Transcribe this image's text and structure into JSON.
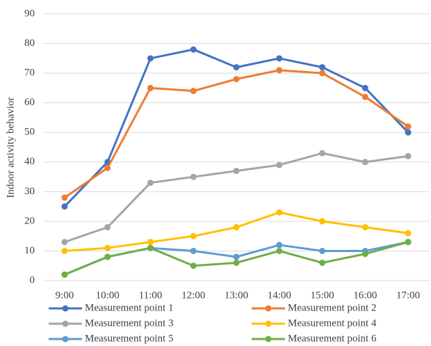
{
  "chart_data": {
    "type": "line",
    "y_label": "Indoor activity behavior",
    "categories": [
      "9:00",
      "10:00",
      "11:00",
      "12:00",
      "13:00",
      "14:00",
      "15:00",
      "16:00",
      "17:00"
    ],
    "series": [
      {
        "name": "Measurement point 1",
        "color": "#4472c4",
        "values": [
          25,
          40,
          75,
          78,
          72,
          75,
          72,
          65,
          50
        ]
      },
      {
        "name": "Measurement point 2",
        "color": "#ed7d31",
        "values": [
          28,
          38,
          65,
          64,
          68,
          71,
          70,
          62,
          52
        ]
      },
      {
        "name": "Measurement point 3",
        "color": "#a5a5a5",
        "values": [
          13,
          18,
          33,
          35,
          37,
          39,
          43,
          40,
          42
        ]
      },
      {
        "name": "Measurement point 4",
        "color": "#ffc000",
        "values": [
          10,
          11,
          13,
          15,
          18,
          23,
          20,
          18,
          16
        ]
      },
      {
        "name": "Measurement point 5",
        "color": "#5b9bd5",
        "values": [
          2,
          8,
          11,
          10,
          8,
          12,
          10,
          10,
          13
        ]
      },
      {
        "name": "Measurement point 6",
        "color": "#70ad47",
        "values": [
          2,
          8,
          11,
          5,
          6,
          10,
          6,
          9,
          13
        ]
      }
    ],
    "ylim": [
      0,
      90
    ],
    "yticks": [
      0,
      10,
      20,
      30,
      40,
      50,
      60,
      70,
      80,
      90
    ],
    "grid": true
  }
}
